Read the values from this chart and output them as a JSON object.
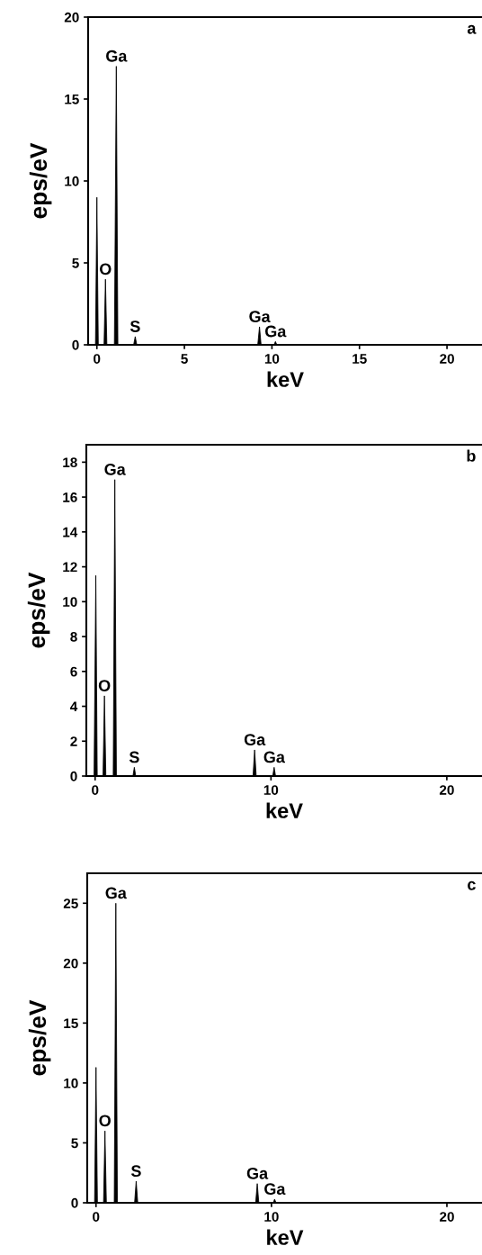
{
  "chart_data": [
    {
      "type": "area",
      "xlabel": "keV",
      "ylabel": "eps/eV",
      "xlim": [
        -0.5,
        22
      ],
      "ylim": [
        0,
        20
      ],
      "xticks": [
        0,
        5,
        10,
        15,
        20
      ],
      "yticks": [
        0,
        5,
        10,
        15,
        20
      ],
      "x": [
        -0.2,
        -0.08,
        0.0,
        0.08,
        0.41,
        0.49,
        0.57,
        1.0,
        1.11,
        1.2,
        2.1,
        2.19,
        2.28,
        9.19,
        9.29,
        9.38,
        10.12,
        10.2,
        10.28,
        22
      ],
      "series": [
        {
          "color": "#000000",
          "values": [
            0,
            0,
            9.0,
            0,
            0,
            4.0,
            0,
            0,
            17.0,
            0,
            0,
            0.5,
            0,
            0,
            1.1,
            0,
            0,
            0.2,
            0,
            0
          ]
        }
      ],
      "annotations": [
        "a",
        {
          "text": "Ga",
          "x": 1.11,
          "y": 17.0
        },
        {
          "text": "O",
          "x": 0.49,
          "y": 4.0
        },
        {
          "text": "S",
          "x": 2.19,
          "y": 0.5
        },
        {
          "text": "Ga",
          "x": 9.29,
          "y": 1.1
        },
        {
          "text": "Ga",
          "x": 10.2,
          "y": 0.2
        }
      ]
    },
    {
      "type": "area",
      "xlabel": "keV",
      "ylabel": "eps/eV",
      "xlim": [
        -0.5,
        22
      ],
      "ylim": [
        0,
        19
      ],
      "xticks": [
        0,
        10,
        20
      ],
      "yticks": [
        0,
        2,
        4,
        6,
        8,
        10,
        12,
        14,
        16,
        18
      ],
      "x": [
        -0.2,
        -0.06,
        0.04,
        0.12,
        0.45,
        0.53,
        0.61,
        1.03,
        1.12,
        1.21,
        2.15,
        2.23,
        2.31,
        8.98,
        9.07,
        9.16,
        10.1,
        10.18,
        10.26,
        22
      ],
      "series": [
        {
          "color": "#000000",
          "values": [
            0,
            0,
            11.5,
            0,
            0,
            4.6,
            0,
            0,
            17.0,
            0,
            0,
            0.5,
            0,
            0,
            1.5,
            0,
            0,
            0.5,
            0,
            0
          ]
        }
      ],
      "annotations": [
        "b",
        {
          "text": "Ga",
          "x": 1.12,
          "y": 17.0
        },
        {
          "text": "O",
          "x": 0.53,
          "y": 4.6
        },
        {
          "text": "S",
          "x": 2.23,
          "y": 0.5
        },
        {
          "text": "Ga",
          "x": 9.07,
          "y": 1.5
        },
        {
          "text": "Ga",
          "x": 10.18,
          "y": 0.5
        }
      ]
    },
    {
      "type": "area",
      "xlabel": "keV",
      "ylabel": "eps/eV",
      "xlim": [
        -0.5,
        22
      ],
      "ylim": [
        0,
        27.5
      ],
      "xticks": [
        0,
        10,
        20
      ],
      "yticks": [
        0,
        5,
        10,
        15,
        20,
        25
      ],
      "x": [
        -0.2,
        -0.08,
        0.0,
        0.08,
        0.43,
        0.51,
        0.59,
        1.04,
        1.13,
        1.22,
        2.2,
        2.29,
        2.38,
        9.1,
        9.19,
        9.28,
        10.1,
        10.18,
        10.26,
        22
      ],
      "series": [
        {
          "color": "#000000",
          "values": [
            0,
            0,
            11.3,
            0,
            0,
            6.0,
            0,
            0,
            25.0,
            0,
            0,
            1.8,
            0,
            0,
            1.6,
            0,
            0,
            0.3,
            0,
            0
          ]
        }
      ],
      "annotations": [
        "c",
        {
          "text": "Ga",
          "x": 1.13,
          "y": 25.0
        },
        {
          "text": "O",
          "x": 0.51,
          "y": 6.0
        },
        {
          "text": "S",
          "x": 2.29,
          "y": 1.8
        },
        {
          "text": "Ga",
          "x": 9.19,
          "y": 1.6
        },
        {
          "text": "Ga",
          "x": 10.18,
          "y": 0.3
        }
      ]
    }
  ]
}
